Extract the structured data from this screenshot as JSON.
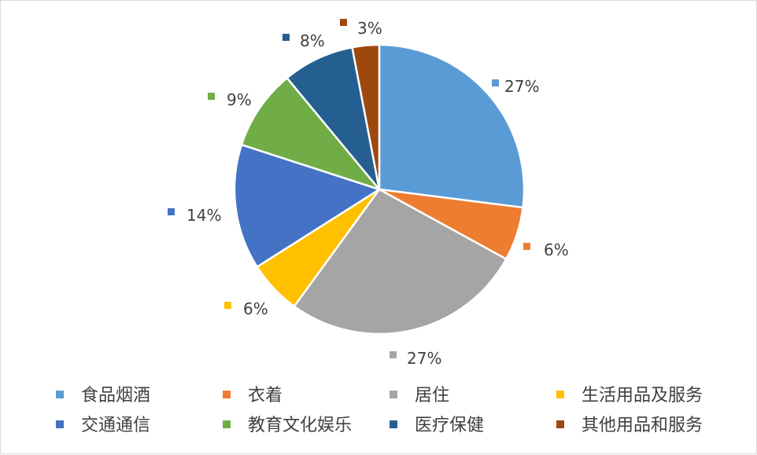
{
  "chart_data": {
    "type": "pie",
    "categories": [
      "食品烟酒",
      "衣着",
      "居住",
      "生活用品及服务",
      "交通通信",
      "教育文化娱乐",
      "医疗保健",
      "其他用品和服务"
    ],
    "values": [
      27,
      6,
      27,
      6,
      14,
      9,
      8,
      3
    ],
    "data_labels": [
      "27%",
      "6%",
      "27%",
      "6%",
      "14%",
      "9%",
      "8%",
      "3%"
    ],
    "colors": [
      "#5B9BD5",
      "#ED7D31",
      "#A5A5A5",
      "#FFC000",
      "#4472C4",
      "#70AD47",
      "#255E91",
      "#9E480E"
    ],
    "start_angle": "12 o'clock",
    "direction": "clockwise",
    "legend": "bottom",
    "legend_columns": 4,
    "title": ""
  }
}
